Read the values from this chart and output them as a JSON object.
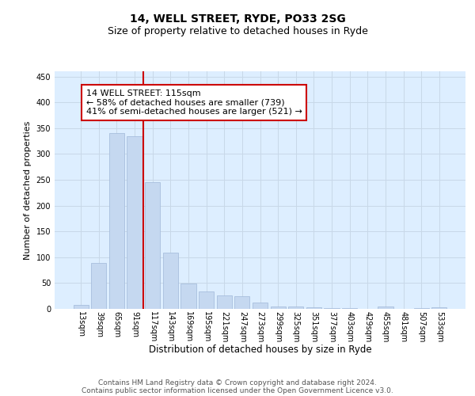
{
  "title1": "14, WELL STREET, RYDE, PO33 2SG",
  "title2": "Size of property relative to detached houses in Ryde",
  "xlabel": "Distribution of detached houses by size in Ryde",
  "ylabel": "Number of detached properties",
  "bar_color": "#c5d8f0",
  "bar_edge_color": "#a0b8d8",
  "categories": [
    "13sqm",
    "39sqm",
    "65sqm",
    "91sqm",
    "117sqm",
    "143sqm",
    "169sqm",
    "195sqm",
    "221sqm",
    "247sqm",
    "273sqm",
    "299sqm",
    "325sqm",
    "351sqm",
    "377sqm",
    "403sqm",
    "429sqm",
    "455sqm",
    "481sqm",
    "507sqm",
    "533sqm"
  ],
  "values": [
    7,
    89,
    341,
    334,
    245,
    109,
    49,
    33,
    26,
    24,
    12,
    5,
    4,
    3,
    2,
    1,
    0,
    4,
    0,
    1,
    3
  ],
  "annotation_text": "14 WELL STREET: 115sqm\n← 58% of detached houses are smaller (739)\n41% of semi-detached houses are larger (521) →",
  "annotation_box_color": "#ffffff",
  "annotation_box_edge": "#cc0000",
  "vline_color": "#cc0000",
  "vline_x": 3.5,
  "ylim": [
    0,
    460
  ],
  "yticks": [
    0,
    50,
    100,
    150,
    200,
    250,
    300,
    350,
    400,
    450
  ],
  "grid_color": "#c8d8e8",
  "background_color": "#ddeeff",
  "footer_line1": "Contains HM Land Registry data © Crown copyright and database right 2024.",
  "footer_line2": "Contains public sector information licensed under the Open Government Licence v3.0.",
  "title1_fontsize": 10,
  "title2_fontsize": 9,
  "xlabel_fontsize": 8.5,
  "ylabel_fontsize": 8,
  "tick_fontsize": 7,
  "annotation_fontsize": 8,
  "footer_fontsize": 6.5
}
